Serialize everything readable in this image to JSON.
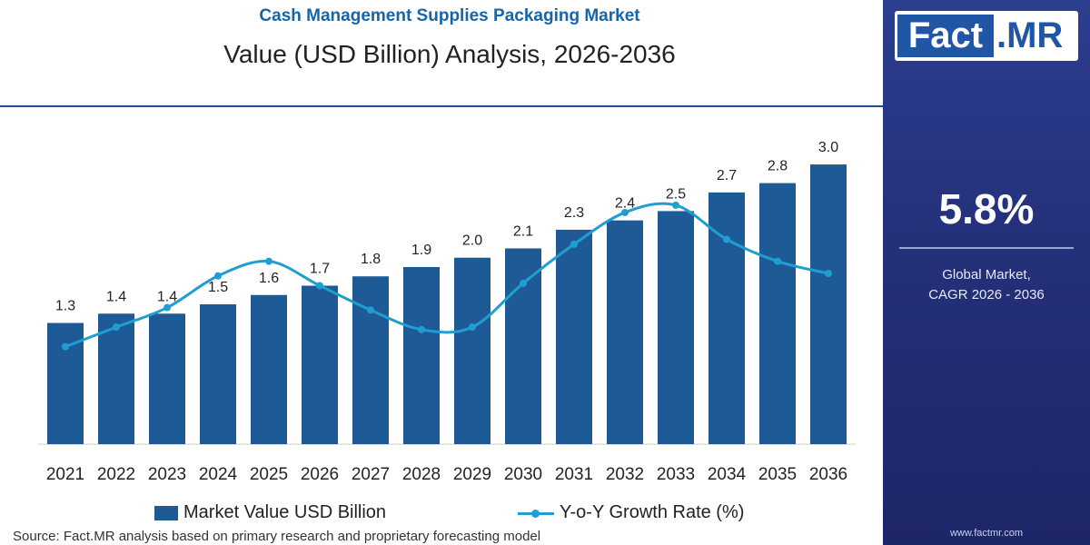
{
  "title": "Cash Management Supplies Packaging Market",
  "subtitle": "Value (USD Billion) Analysis, 2026-2036",
  "source": "Source: Fact.MR analysis based on primary research and proprietary forecasting model",
  "brand": {
    "logo_main": "Fact",
    "logo_suffix": ".MR",
    "website": "www.factmr.com"
  },
  "side_panel": {
    "cagr_value": "5.8%",
    "cagr_label_line1": "Global Market,",
    "cagr_label_line2": "CAGR 2026 - 2036"
  },
  "colors": {
    "bar": "#1e5b96",
    "line": "#1f9fd1",
    "title": "#1565a8",
    "panel": "#26317c"
  },
  "chart_data": {
    "type": "bar",
    "categories": [
      "2021",
      "2022",
      "2023",
      "2024",
      "2025",
      "2026",
      "2027",
      "2028",
      "2029",
      "2030",
      "2031",
      "2032",
      "2033",
      "2034",
      "2035",
      "2036"
    ],
    "series": [
      {
        "name": "Market Value USD Billion",
        "type": "bar",
        "axis": "left",
        "values": [
          1.3,
          1.4,
          1.4,
          1.5,
          1.6,
          1.7,
          1.8,
          1.9,
          2.0,
          2.1,
          2.3,
          2.4,
          2.5,
          2.7,
          2.8,
          3.0
        ],
        "labels": [
          "1.3",
          "1.4",
          "1.4",
          "1.5",
          "1.6",
          "1.7",
          "1.8",
          "1.9",
          "2.0",
          "2.1",
          "2.3",
          "2.4",
          "2.5",
          "2.7",
          "2.8",
          "3.0"
        ]
      },
      {
        "name": "Y-o-Y Growth Rate (%)",
        "type": "line",
        "axis": "right",
        "values": [
          4.0,
          4.8,
          5.6,
          6.9,
          7.5,
          6.5,
          5.5,
          4.7,
          4.8,
          6.6,
          8.2,
          9.5,
          9.8,
          8.4,
          7.5,
          7.0
        ]
      }
    ],
    "xlabel": "",
    "ylabel": "",
    "ylim": [
      0,
      3.4
    ],
    "y2lim": [
      0,
      13
    ],
    "grid": false,
    "legend": "bottom"
  }
}
